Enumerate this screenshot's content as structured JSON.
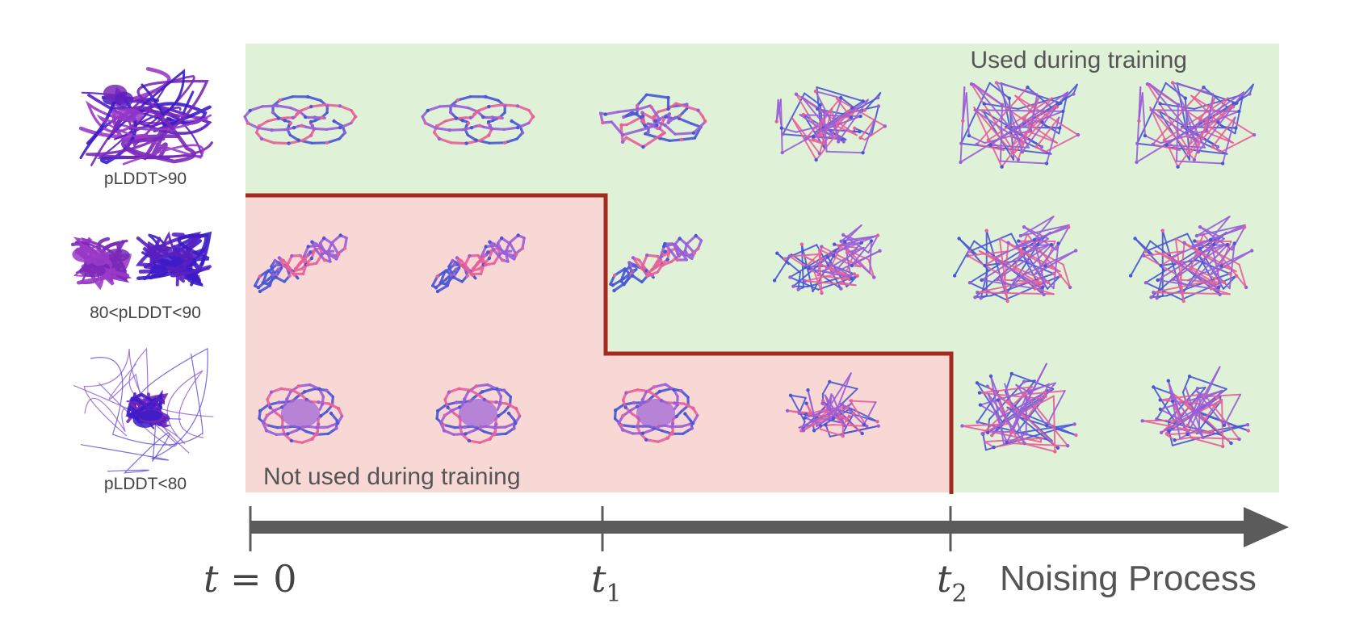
{
  "regions": {
    "used_label": "Used during training",
    "not_used_label": "Not used during training",
    "used_color": "#dff2d8",
    "not_used_color": "#f8d8d4",
    "boundary_color": "#a42a1e"
  },
  "rows": [
    {
      "label": "pLDDT>90",
      "structure": "folded-protein-high-confidence"
    },
    {
      "label": "80<pLDDT<90",
      "structure": "two-domain-protein"
    },
    {
      "label": "pLDDT<80",
      "structure": "disordered-protein"
    }
  ],
  "axis": {
    "label": "Noising Process",
    "ticks": [
      {
        "var": "t",
        "sub": "",
        "eq": "= 0"
      },
      {
        "var": "t",
        "sub": "1",
        "eq": ""
      },
      {
        "var": "t",
        "sub": "2",
        "eq": ""
      }
    ],
    "color": "#5b5b5b"
  },
  "colors": {
    "blue": "#4a56d6",
    "pink": "#e8609a",
    "purple": "#9a5fd8"
  }
}
